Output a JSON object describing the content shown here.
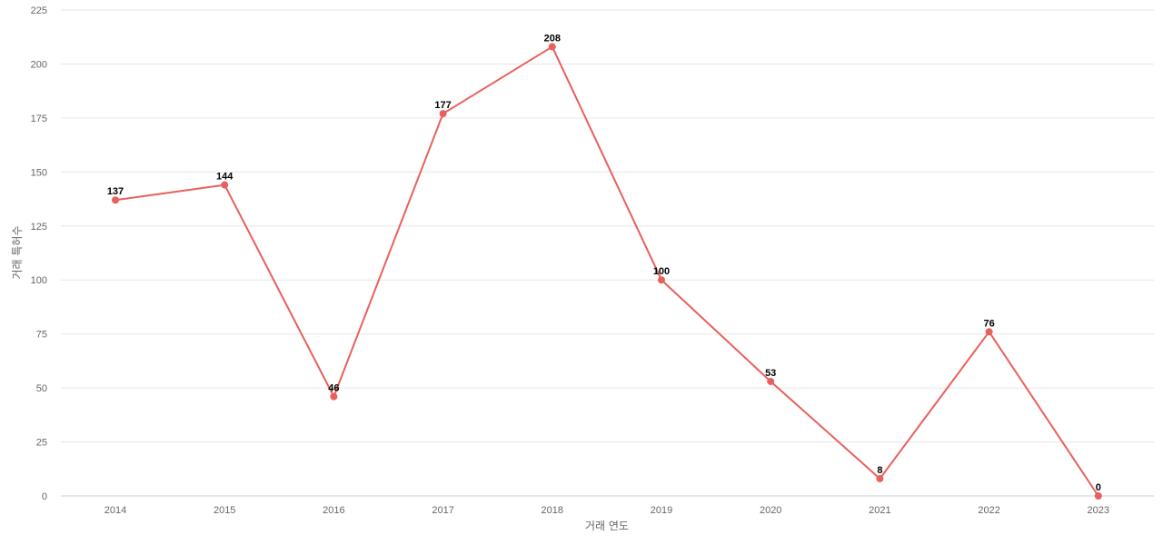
{
  "chart_data": {
    "type": "line",
    "title": "",
    "xlabel": "거래 연도",
    "ylabel": "거래 특허수",
    "categories": [
      "2014",
      "2015",
      "2016",
      "2017",
      "2018",
      "2019",
      "2020",
      "2021",
      "2022",
      "2023"
    ],
    "series": [
      {
        "values": [
          137,
          144,
          46,
          177,
          208,
          100,
          53,
          8,
          76,
          0
        ]
      }
    ],
    "ylim": [
      0,
      225
    ],
    "yticks": [
      0,
      25,
      50,
      75,
      100,
      125,
      150,
      175,
      200,
      225
    ],
    "grid": true,
    "legend": "none",
    "colors": {
      "line": "#e8605c",
      "grid": "#e6e6e6",
      "text": "#666666"
    }
  }
}
